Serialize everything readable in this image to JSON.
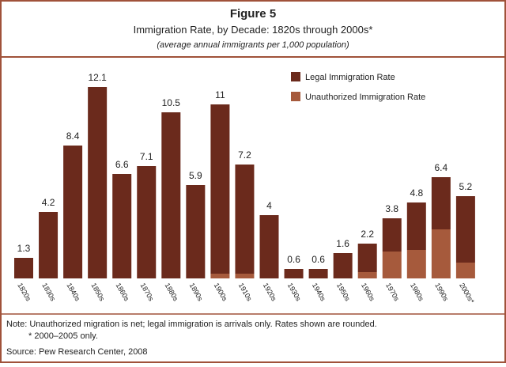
{
  "chart_data": {
    "type": "stacked_bar",
    "title": "Figure 5",
    "subtitle": "Immigration Rate, by Decade: 1820s through 2000s*",
    "units_note": "(average annual immigrants per 1,000 population)",
    "categories": [
      "1820s",
      "1830s",
      "1840s",
      "1850s",
      "1860s",
      "1870s",
      "1880s",
      "1890s",
      "1900s",
      "1910s",
      "1920s",
      "1930s",
      "1940s",
      "1950s",
      "1960s",
      "1970s",
      "1980s",
      "1990s",
      "2000s*"
    ],
    "series": [
      {
        "name": "Legal Immigration Rate",
        "color": "#6b2a1c",
        "values": [
          1.3,
          4.2,
          8.4,
          12.1,
          6.6,
          7.1,
          10.5,
          5.9,
          10.7,
          6.9,
          4.0,
          0.6,
          0.6,
          1.6,
          1.8,
          2.1,
          3.0,
          3.3,
          4.2
        ]
      },
      {
        "name": "Unauthorized Immigration Rate",
        "color": "#a65a3c",
        "values": [
          0,
          0,
          0,
          0,
          0,
          0,
          0,
          0,
          0.3,
          0.3,
          0,
          0,
          0,
          0,
          0.4,
          1.7,
          1.8,
          3.1,
          1.0
        ]
      }
    ],
    "totals": [
      1.3,
      4.2,
      8.4,
      12.1,
      6.6,
      7.1,
      10.5,
      5.9,
      11.0,
      7.2,
      4.0,
      0.6,
      0.6,
      1.6,
      2.2,
      3.8,
      4.8,
      6.4,
      5.2
    ],
    "notes": [
      "Note: Unauthorized migration is net; legal immigration is arrivals only.  Rates shown are rounded.",
      "* 2000–2005 only."
    ],
    "source": "Source: Pew Research Center, 2008"
  }
}
